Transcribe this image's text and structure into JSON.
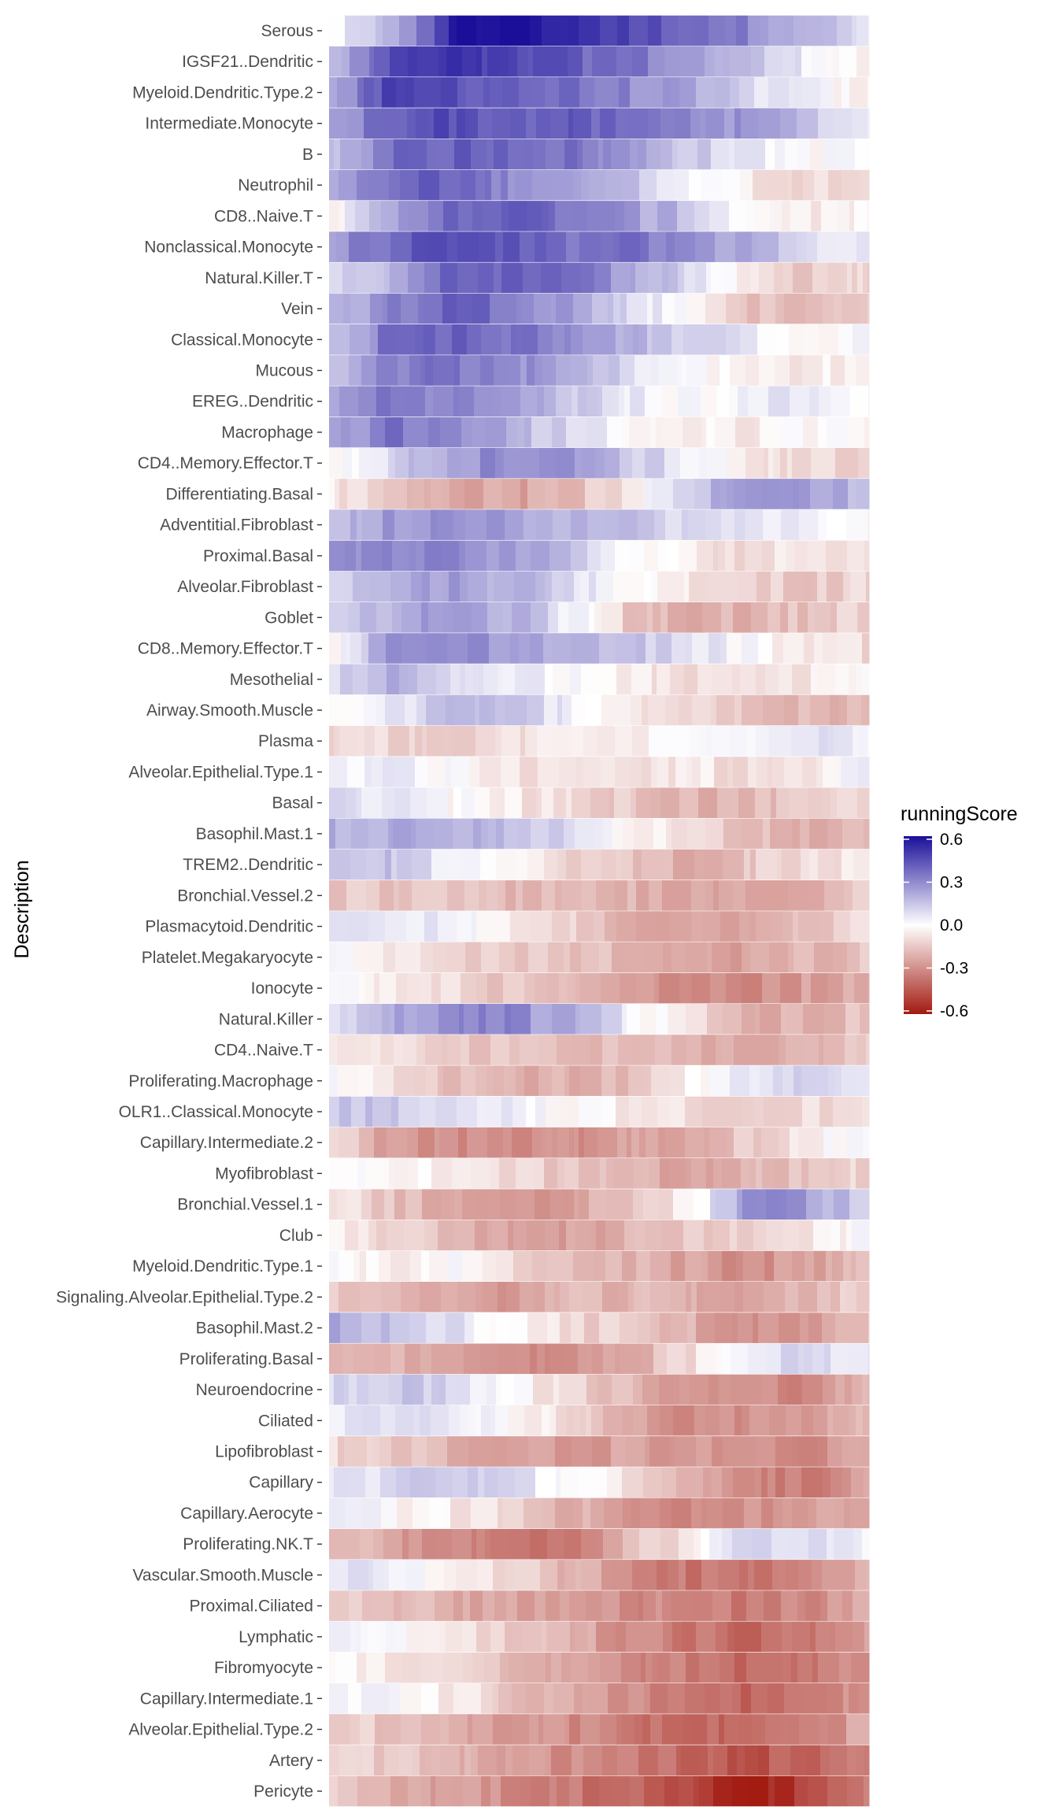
{
  "chart_data": {
    "type": "heatmap",
    "ylabel": "Description",
    "xlabel": "",
    "rows": [
      "Serous",
      "IGSF21..Dendritic",
      "Myeloid.Dendritic.Type.2",
      "Intermediate.Monocyte",
      "B",
      "Neutrophil",
      "CD8..Naive.T",
      "Nonclassical.Monocyte",
      "Natural.Killer.T",
      "Vein",
      "Classical.Monocyte",
      "Mucous",
      "EREG..Dendritic",
      "Macrophage",
      "CD4..Memory.Effector.T",
      "Differentiating.Basal",
      "Adventitial.Fibroblast",
      "Proximal.Basal",
      "Alveolar.Fibroblast",
      "Goblet",
      "CD8..Memory.Effector.T",
      "Mesothelial",
      "Airway.Smooth.Muscle",
      "Plasma",
      "Alveolar.Epithelial.Type.1",
      "Basal",
      "Basophil.Mast.1",
      "TREM2..Dendritic",
      "Bronchial.Vessel.2",
      "Plasmacytoid.Dendritic",
      "Platelet.Megakaryocyte",
      "Ionocyte",
      "Natural.Killer",
      "CD4..Naive.T",
      "Proliferating.Macrophage",
      "OLR1..Classical.Monocyte",
      "Capillary.Intermediate.2",
      "Myofibroblast",
      "Bronchial.Vessel.1",
      "Club",
      "Myeloid.Dendritic.Type.1",
      "Signaling.Alveolar.Epithelial.Type.2",
      "Basophil.Mast.2",
      "Proliferating.Basal",
      "Neuroendocrine",
      "Ciliated",
      "Lipofibroblast",
      "Capillary",
      "Capillary.Aerocyte",
      "Proliferating.NK.T",
      "Vascular.Smooth.Muscle",
      "Proximal.Ciliated",
      "Lymphatic",
      "Fibromyocyte",
      "Capillary.Intermediate.1",
      "Alveolar.Epithelial.Type.2",
      "Artery",
      "Pericyte"
    ],
    "profiles": [
      [
        0.0,
        0.15,
        0.55,
        0.62,
        0.55,
        0.45,
        0.4,
        0.3,
        0.2,
        0.05
      ],
      [
        0.1,
        0.45,
        0.5,
        0.45,
        0.4,
        0.35,
        0.25,
        0.15,
        0.05,
        -0.05
      ],
      [
        0.2,
        0.45,
        0.45,
        0.4,
        0.35,
        0.3,
        0.2,
        0.1,
        0.02,
        -0.05
      ],
      [
        0.2,
        0.4,
        0.45,
        0.4,
        0.4,
        0.35,
        0.3,
        0.25,
        0.15,
        0.05
      ],
      [
        0.15,
        0.35,
        0.4,
        0.4,
        0.35,
        0.25,
        0.15,
        0.05,
        0.0,
        0.0
      ],
      [
        0.2,
        0.35,
        0.4,
        0.3,
        0.25,
        0.15,
        0.05,
        -0.05,
        -0.1,
        -0.05
      ],
      [
        -0.05,
        0.2,
        0.4,
        0.4,
        0.35,
        0.25,
        0.15,
        0.0,
        -0.05,
        -0.05
      ],
      [
        0.2,
        0.4,
        0.45,
        0.4,
        0.35,
        0.35,
        0.3,
        0.2,
        0.1,
        0.05
      ],
      [
        0.05,
        0.2,
        0.4,
        0.4,
        0.35,
        0.25,
        0.1,
        -0.05,
        -0.15,
        -0.1
      ],
      [
        0.15,
        0.3,
        0.4,
        0.35,
        0.25,
        0.1,
        0.0,
        -0.15,
        -0.2,
        -0.1
      ],
      [
        0.1,
        0.35,
        0.4,
        0.35,
        0.3,
        0.2,
        0.1,
        0.05,
        0.0,
        0.0
      ],
      [
        0.15,
        0.3,
        0.35,
        0.3,
        0.2,
        0.1,
        0.0,
        -0.05,
        -0.05,
        -0.05
      ],
      [
        0.2,
        0.35,
        0.3,
        0.25,
        0.15,
        0.05,
        0.0,
        0.05,
        0.05,
        0.0
      ],
      [
        0.2,
        0.35,
        0.3,
        0.2,
        0.1,
        0.0,
        -0.05,
        -0.05,
        0.0,
        0.0
      ],
      [
        -0.05,
        0.1,
        0.25,
        0.3,
        0.25,
        0.15,
        0.05,
        -0.05,
        -0.1,
        -0.1
      ],
      [
        -0.05,
        -0.15,
        -0.2,
        -0.25,
        -0.2,
        -0.05,
        0.1,
        0.3,
        0.25,
        0.15
      ],
      [
        0.15,
        0.25,
        0.3,
        0.25,
        0.2,
        0.15,
        0.1,
        0.05,
        0.05,
        0.0
      ],
      [
        0.25,
        0.3,
        0.3,
        0.25,
        0.15,
        0.0,
        -0.05,
        -0.1,
        -0.05,
        -0.05
      ],
      [
        0.1,
        0.2,
        0.25,
        0.2,
        0.1,
        0.0,
        -0.05,
        -0.1,
        -0.15,
        -0.1
      ],
      [
        0.05,
        0.2,
        0.25,
        0.2,
        0.05,
        -0.15,
        -0.2,
        -0.2,
        -0.15,
        -0.1
      ],
      [
        -0.05,
        0.25,
        0.3,
        0.25,
        0.2,
        0.15,
        0.1,
        0.0,
        -0.05,
        -0.1
      ],
      [
        0.1,
        0.2,
        0.1,
        0.05,
        0.0,
        -0.05,
        -0.1,
        -0.1,
        -0.05,
        0.0
      ],
      [
        -0.05,
        0.05,
        0.15,
        0.15,
        0.05,
        -0.05,
        -0.1,
        -0.15,
        -0.2,
        -0.2
      ],
      [
        -0.1,
        -0.1,
        -0.15,
        -0.1,
        -0.05,
        -0.05,
        0.0,
        0.05,
        0.1,
        0.05
      ],
      [
        0.05,
        0.05,
        0.0,
        -0.05,
        -0.1,
        -0.1,
        -0.05,
        -0.1,
        -0.1,
        0.05
      ],
      [
        0.1,
        0.05,
        0.0,
        -0.05,
        -0.1,
        -0.15,
        -0.2,
        -0.2,
        -0.15,
        -0.1
      ],
      [
        0.2,
        0.2,
        0.2,
        0.15,
        0.1,
        0.0,
        -0.1,
        -0.15,
        -0.2,
        -0.15
      ],
      [
        0.1,
        0.15,
        0.05,
        -0.05,
        -0.1,
        -0.15,
        -0.2,
        -0.15,
        -0.1,
        -0.05
      ],
      [
        -0.15,
        -0.15,
        -0.15,
        -0.2,
        -0.2,
        -0.2,
        -0.25,
        -0.25,
        -0.2,
        -0.1
      ],
      [
        0.05,
        0.05,
        0.05,
        -0.05,
        -0.1,
        -0.2,
        -0.25,
        -0.2,
        -0.15,
        -0.1
      ],
      [
        0.0,
        -0.05,
        -0.1,
        -0.15,
        -0.15,
        -0.2,
        -0.25,
        -0.25,
        -0.2,
        -0.15
      ],
      [
        0.0,
        -0.05,
        -0.1,
        -0.15,
        -0.2,
        -0.25,
        -0.3,
        -0.3,
        -0.25,
        -0.2
      ],
      [
        0.05,
        0.2,
        0.3,
        0.3,
        0.2,
        0.05,
        -0.1,
        -0.2,
        -0.2,
        -0.15
      ],
      [
        -0.1,
        -0.1,
        -0.15,
        -0.15,
        -0.15,
        -0.2,
        -0.2,
        -0.25,
        -0.2,
        -0.1
      ],
      [
        0.05,
        -0.05,
        -0.15,
        -0.2,
        -0.2,
        -0.2,
        -0.05,
        0.05,
        0.1,
        0.05
      ],
      [
        0.15,
        0.15,
        0.1,
        0.05,
        0.0,
        -0.05,
        -0.1,
        -0.15,
        -0.1,
        -0.05
      ],
      [
        -0.1,
        -0.25,
        -0.3,
        -0.3,
        -0.3,
        -0.25,
        -0.2,
        -0.15,
        -0.05,
        0.05
      ],
      [
        -0.05,
        0.0,
        -0.05,
        -0.1,
        -0.15,
        -0.2,
        -0.25,
        -0.2,
        -0.15,
        -0.1
      ],
      [
        -0.05,
        -0.15,
        -0.25,
        -0.3,
        -0.25,
        -0.15,
        -0.05,
        0.3,
        0.25,
        0.1
      ],
      [
        -0.05,
        -0.1,
        -0.2,
        -0.25,
        -0.25,
        -0.2,
        -0.15,
        -0.1,
        -0.05,
        0.0
      ],
      [
        0.0,
        -0.05,
        0.0,
        -0.1,
        -0.15,
        -0.2,
        -0.25,
        -0.3,
        -0.25,
        -0.15
      ],
      [
        -0.1,
        -0.2,
        -0.25,
        -0.25,
        -0.2,
        -0.2,
        -0.2,
        -0.25,
        -0.2,
        -0.1
      ],
      [
        0.25,
        0.15,
        0.1,
        0.0,
        -0.1,
        -0.15,
        -0.2,
        -0.3,
        -0.25,
        -0.15
      ],
      [
        -0.15,
        -0.2,
        -0.25,
        -0.3,
        -0.3,
        -0.25,
        -0.1,
        0.05,
        0.1,
        0.05
      ],
      [
        0.1,
        0.15,
        0.1,
        0.0,
        -0.1,
        -0.2,
        -0.25,
        -0.3,
        -0.3,
        -0.2
      ],
      [
        0.05,
        0.1,
        0.05,
        0.0,
        -0.1,
        -0.2,
        -0.3,
        -0.3,
        -0.25,
        -0.15
      ],
      [
        -0.1,
        -0.15,
        -0.2,
        -0.25,
        -0.25,
        -0.25,
        -0.25,
        -0.3,
        -0.3,
        -0.25
      ],
      [
        0.05,
        0.1,
        0.15,
        0.1,
        0.0,
        -0.1,
        -0.2,
        -0.3,
        -0.35,
        -0.25
      ],
      [
        0.05,
        0.0,
        -0.05,
        -0.1,
        -0.2,
        -0.25,
        -0.3,
        -0.3,
        -0.25,
        -0.2
      ],
      [
        -0.15,
        -0.25,
        -0.3,
        -0.35,
        -0.35,
        -0.2,
        -0.05,
        0.1,
        0.1,
        0.05
      ],
      [
        0.1,
        0.05,
        0.0,
        -0.1,
        -0.2,
        -0.3,
        -0.35,
        -0.35,
        -0.3,
        -0.2
      ],
      [
        -0.1,
        -0.15,
        -0.2,
        -0.25,
        -0.25,
        -0.3,
        -0.3,
        -0.35,
        -0.3,
        -0.2
      ],
      [
        0.05,
        0.0,
        -0.05,
        -0.15,
        -0.2,
        -0.3,
        -0.35,
        -0.4,
        -0.35,
        -0.25
      ],
      [
        0.0,
        -0.05,
        -0.1,
        -0.2,
        -0.25,
        -0.3,
        -0.35,
        -0.4,
        -0.35,
        -0.25
      ],
      [
        0.05,
        0.0,
        -0.05,
        -0.15,
        -0.2,
        -0.3,
        -0.35,
        -0.4,
        -0.35,
        -0.25
      ],
      [
        -0.1,
        -0.15,
        -0.2,
        -0.25,
        -0.3,
        -0.35,
        -0.4,
        -0.4,
        -0.35,
        -0.2
      ],
      [
        -0.1,
        -0.15,
        -0.2,
        -0.25,
        -0.3,
        -0.35,
        -0.4,
        -0.45,
        -0.4,
        -0.3
      ],
      [
        -0.1,
        -0.2,
        -0.25,
        -0.3,
        -0.35,
        -0.4,
        -0.5,
        -0.6,
        -0.5,
        -0.35
      ]
    ],
    "legend": {
      "title": "runningScore",
      "ticks": [
        "0.6",
        "0.3",
        "0.0",
        "-0.3",
        "-0.6"
      ],
      "tick_values": [
        0.6,
        0.3,
        0.0,
        -0.3,
        -0.6
      ],
      "range": [
        -0.6,
        0.6
      ],
      "colors": {
        "high": "#1b0f9a",
        "mid": "#ffffff",
        "low": "#a11a10"
      }
    },
    "colors": {
      "tick_text": "#4d4d4d",
      "title_text": "#000000",
      "tick_mark": "#333333"
    }
  }
}
